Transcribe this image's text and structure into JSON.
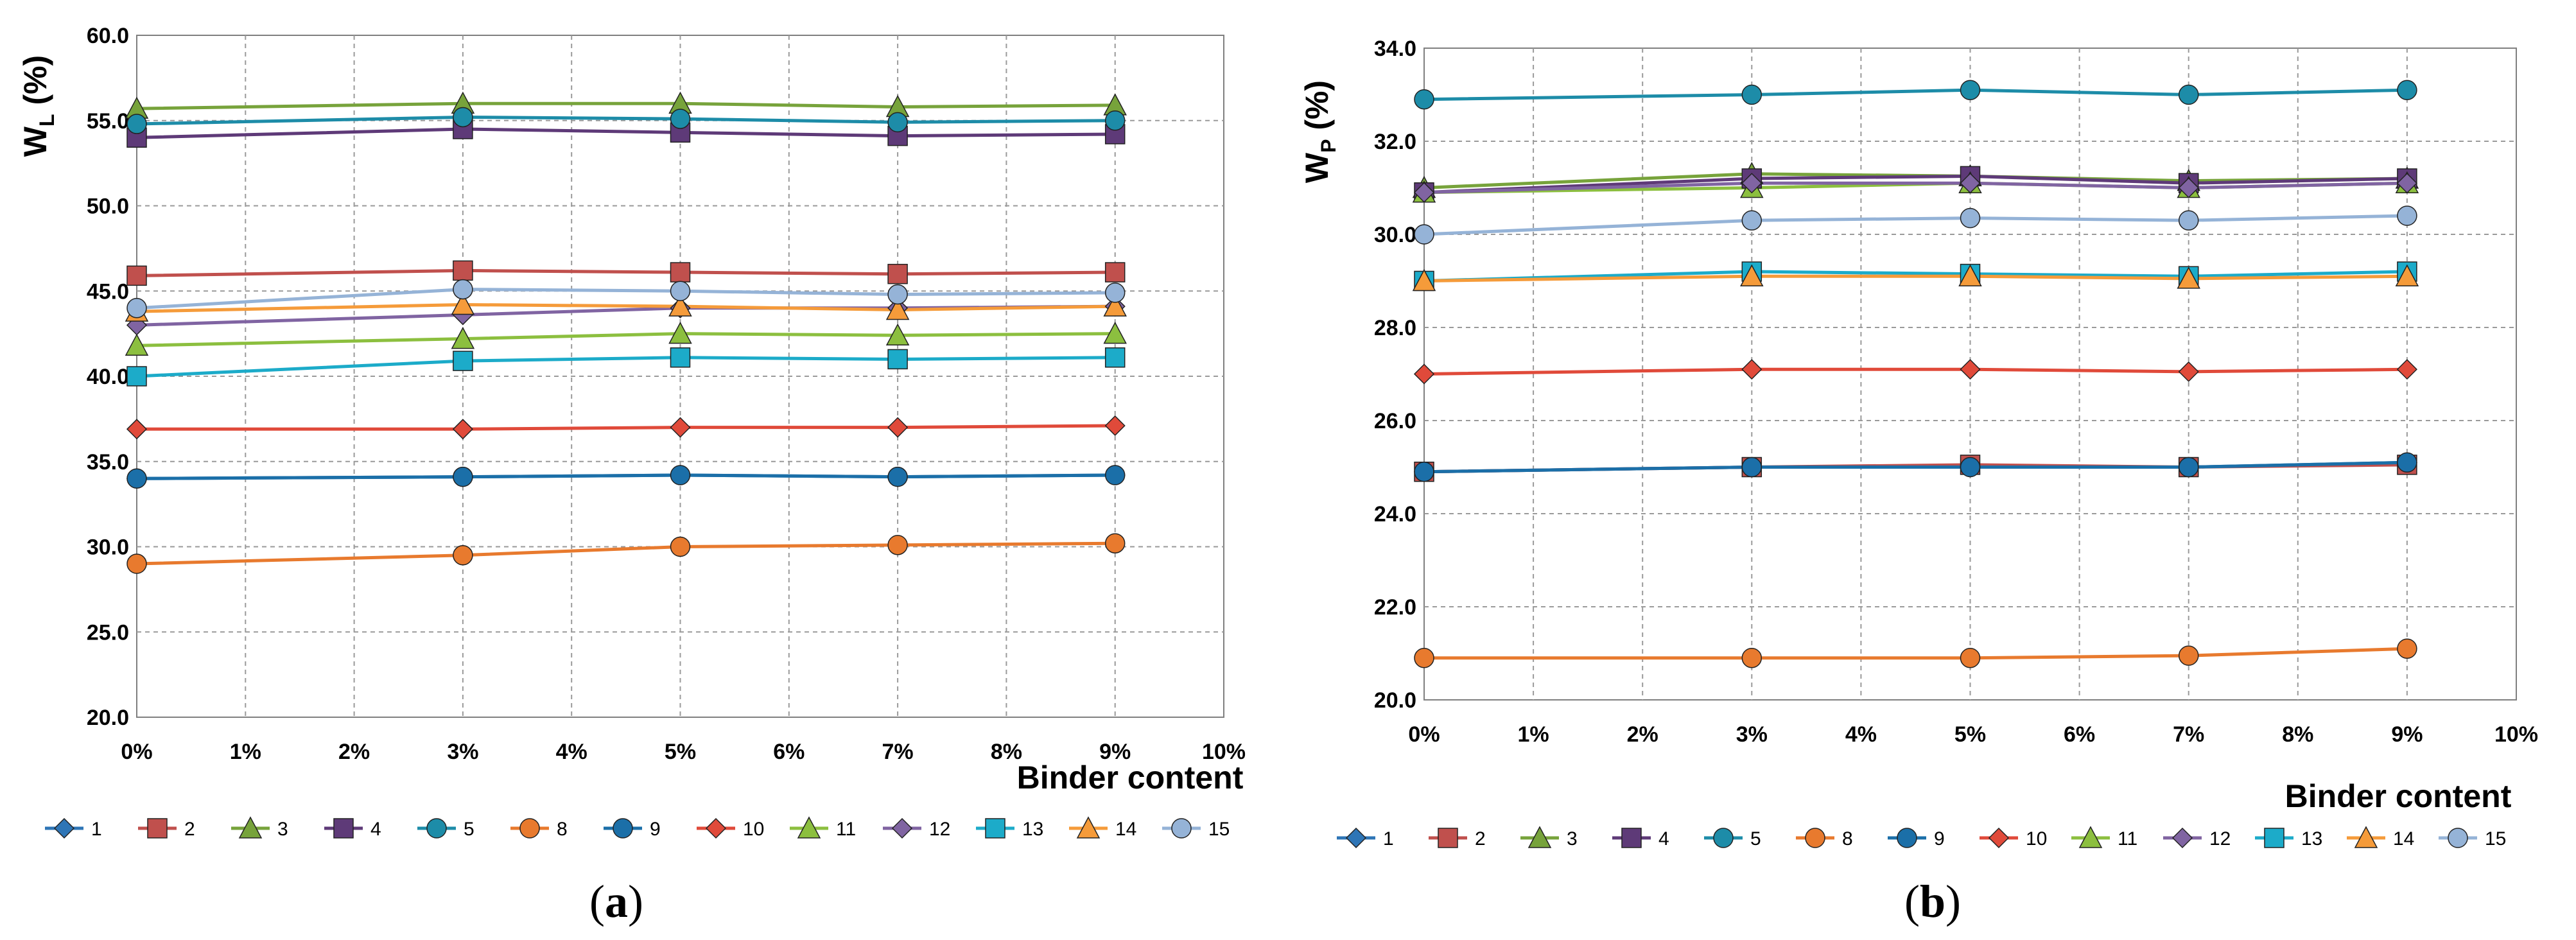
{
  "chart_data": [
    {
      "type": "line",
      "panel_label_open": "(",
      "panel_label_letter": "a",
      "panel_label_close": ")",
      "xlabel": "Binder content",
      "ylabel_main": "W",
      "ylabel_sub": "L",
      "ylabel_suffix": " (%)",
      "xlim": [
        0,
        10
      ],
      "ylim": [
        20,
        60
      ],
      "x_ticks": [
        "0%",
        "1%",
        "2%",
        "3%",
        "4%",
        "5%",
        "6%",
        "7%",
        "8%",
        "9%",
        "10%"
      ],
      "y_ticks": [
        "20.0",
        "25.0",
        "30.0",
        "35.0",
        "40.0",
        "45.0",
        "50.0",
        "55.0",
        "60.0"
      ],
      "grid": true,
      "legend_position": "bottom",
      "x": [
        0,
        3,
        5,
        7,
        9
      ],
      "series": [
        {
          "name": "1",
          "color": "#2e75b6",
          "marker": "diamond",
          "values": [
            34.0,
            34.1,
            34.2,
            34.1,
            34.2
          ]
        },
        {
          "name": "2",
          "color": "#c0504d",
          "marker": "square",
          "values": [
            45.9,
            46.2,
            46.1,
            46.0,
            46.1
          ]
        },
        {
          "name": "3",
          "color": "#77a33b",
          "marker": "triangle",
          "values": [
            55.7,
            56.0,
            56.0,
            55.8,
            55.9
          ]
        },
        {
          "name": "4",
          "color": "#5e3a78",
          "marker": "square",
          "values": [
            54.0,
            54.5,
            54.3,
            54.1,
            54.2
          ]
        },
        {
          "name": "5",
          "color": "#1d8ca8",
          "marker": "circle",
          "values": [
            54.8,
            55.2,
            55.1,
            54.9,
            55.0
          ]
        },
        {
          "name": "8",
          "color": "#e87a2e",
          "marker": "circle",
          "values": [
            29.0,
            29.5,
            30.0,
            30.1,
            30.2
          ]
        },
        {
          "name": "9",
          "color": "#1b6fa8",
          "marker": "circle",
          "values": [
            34.0,
            34.1,
            34.2,
            34.1,
            34.2
          ]
        },
        {
          "name": "10",
          "color": "#e04a3a",
          "marker": "diamond",
          "values": [
            36.9,
            36.9,
            37.0,
            37.0,
            37.1
          ]
        },
        {
          "name": "11",
          "color": "#8cbf3f",
          "marker": "triangle",
          "values": [
            41.8,
            42.2,
            42.5,
            42.4,
            42.5
          ]
        },
        {
          "name": "12",
          "color": "#8064a2",
          "marker": "diamond",
          "values": [
            43.0,
            43.6,
            44.0,
            44.0,
            44.1
          ]
        },
        {
          "name": "13",
          "color": "#1cabc9",
          "marker": "square",
          "values": [
            40.0,
            40.9,
            41.1,
            41.0,
            41.1
          ]
        },
        {
          "name": "14",
          "color": "#f59b3a",
          "marker": "triangle",
          "values": [
            43.8,
            44.2,
            44.1,
            43.9,
            44.1
          ]
        },
        {
          "name": "15",
          "color": "#95b3d7",
          "marker": "circle",
          "values": [
            44.0,
            45.1,
            45.0,
            44.8,
            44.9
          ]
        }
      ]
    },
    {
      "type": "line",
      "panel_label_open": "(",
      "panel_label_letter": "b",
      "panel_label_close": ")",
      "xlabel": "Binder content",
      "ylabel_main": "W",
      "ylabel_sub": "P",
      "ylabel_suffix": " (%)",
      "xlim": [
        0,
        10
      ],
      "ylim": [
        20,
        34
      ],
      "x_ticks": [
        "0%",
        "1%",
        "2%",
        "3%",
        "4%",
        "5%",
        "6%",
        "7%",
        "8%",
        "9%",
        "10%"
      ],
      "y_ticks": [
        "20.0",
        "22.0",
        "24.0",
        "26.0",
        "28.0",
        "30.0",
        "32.0",
        "34.0"
      ],
      "grid": true,
      "legend_position": "bottom",
      "x": [
        0,
        3,
        5,
        7,
        9
      ],
      "series": [
        {
          "name": "1",
          "color": "#2e75b6",
          "marker": "diamond",
          "values": [
            24.9,
            25.0,
            25.0,
            25.0,
            25.1
          ]
        },
        {
          "name": "2",
          "color": "#c0504d",
          "marker": "square",
          "values": [
            24.9,
            25.0,
            25.05,
            25.0,
            25.05
          ]
        },
        {
          "name": "3",
          "color": "#77a33b",
          "marker": "triangle",
          "values": [
            31.0,
            31.3,
            31.25,
            31.15,
            31.2
          ]
        },
        {
          "name": "4",
          "color": "#5e3a78",
          "marker": "square",
          "values": [
            30.9,
            31.2,
            31.25,
            31.1,
            31.2
          ]
        },
        {
          "name": "5",
          "color": "#1d8ca8",
          "marker": "circle",
          "values": [
            32.9,
            33.0,
            33.1,
            33.0,
            33.1
          ]
        },
        {
          "name": "8",
          "color": "#e87a2e",
          "marker": "circle",
          "values": [
            20.9,
            20.9,
            20.9,
            20.95,
            21.1
          ]
        },
        {
          "name": "9",
          "color": "#1b6fa8",
          "marker": "circle",
          "values": [
            24.9,
            25.0,
            25.0,
            25.0,
            25.1
          ]
        },
        {
          "name": "10",
          "color": "#e04a3a",
          "marker": "diamond",
          "values": [
            27.0,
            27.1,
            27.1,
            27.05,
            27.1
          ]
        },
        {
          "name": "11",
          "color": "#8cbf3f",
          "marker": "triangle",
          "values": [
            30.9,
            31.0,
            31.1,
            31.0,
            31.1
          ]
        },
        {
          "name": "12",
          "color": "#8064a2",
          "marker": "diamond",
          "values": [
            30.9,
            31.1,
            31.1,
            31.0,
            31.1
          ]
        },
        {
          "name": "13",
          "color": "#1cabc9",
          "marker": "square",
          "values": [
            29.0,
            29.2,
            29.15,
            29.1,
            29.2
          ]
        },
        {
          "name": "14",
          "color": "#f59b3a",
          "marker": "triangle",
          "values": [
            29.0,
            29.1,
            29.1,
            29.05,
            29.1
          ]
        },
        {
          "name": "15",
          "color": "#95b3d7",
          "marker": "circle",
          "values": [
            30.0,
            30.3,
            30.35,
            30.3,
            30.4
          ]
        }
      ]
    }
  ]
}
